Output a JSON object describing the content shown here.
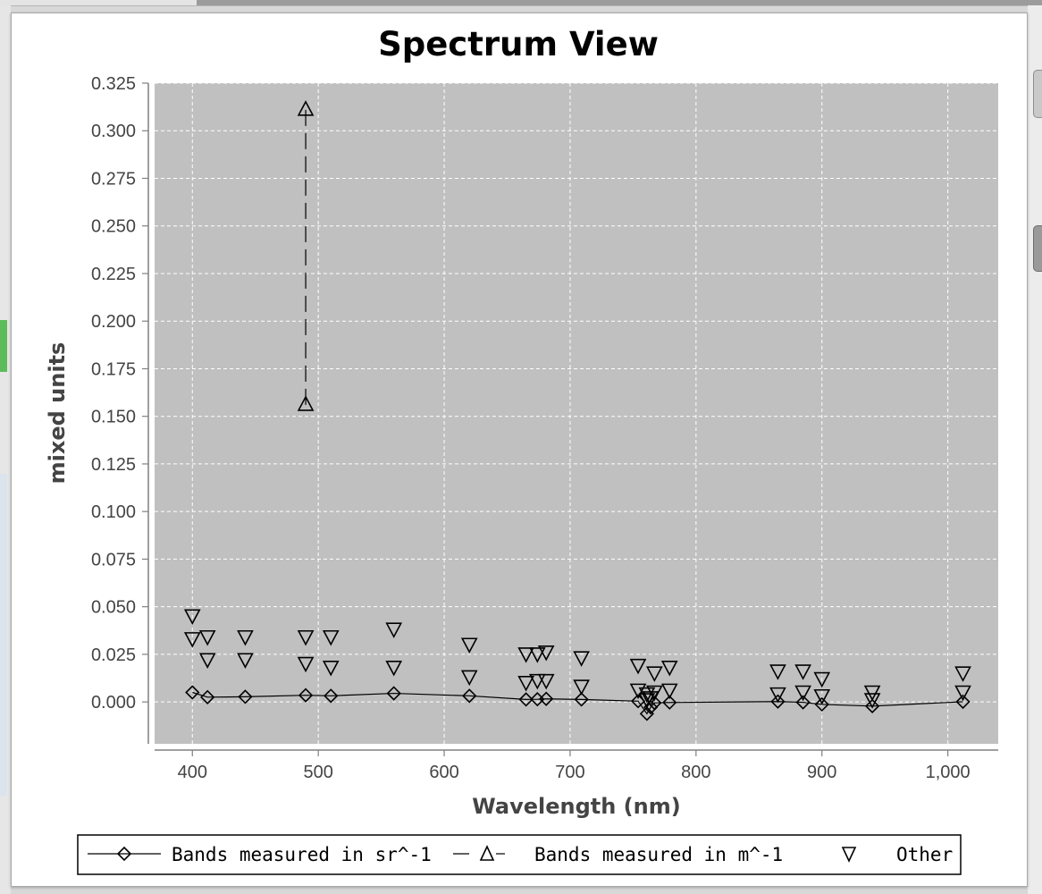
{
  "colors": {
    "plot_background": "#c0c0c0",
    "gridline": "#ffffff",
    "series_stroke": "#000000",
    "axis": "#808080"
  },
  "chart_data": {
    "type": "scatter",
    "title": "Spectrum View",
    "xlabel": "Wavelength (nm)",
    "ylabel": "mixed units",
    "xlim": [
      370,
      1040
    ],
    "ylim": [
      -0.022,
      0.325
    ],
    "xticks": [
      400,
      500,
      600,
      700,
      800,
      900,
      1000
    ],
    "xtick_labels": [
      "400",
      "500",
      "600",
      "700",
      "800",
      "900",
      "1,000"
    ],
    "yticks": [
      0.0,
      0.025,
      0.05,
      0.075,
      0.1,
      0.125,
      0.15,
      0.175,
      0.2,
      0.225,
      0.25,
      0.275,
      0.3,
      0.325
    ],
    "ytick_labels": [
      "0.000",
      "0.025",
      "0.050",
      "0.075",
      "0.100",
      "0.125",
      "0.150",
      "0.175",
      "0.200",
      "0.225",
      "0.250",
      "0.275",
      "0.300",
      "0.325"
    ],
    "grid": true,
    "legend_position": "bottom",
    "series": [
      {
        "name": "Bands measured in sr^-1",
        "marker": "diamond",
        "line": "solid",
        "x": [
          400,
          412,
          442,
          490,
          510,
          560,
          620,
          665,
          674,
          681,
          709,
          754,
          761,
          764,
          767,
          779,
          865,
          885,
          900,
          940,
          1012
        ],
        "y": [
          0.005,
          0.0025,
          0.0027,
          0.0035,
          0.0032,
          0.0045,
          0.0032,
          0.0013,
          0.0014,
          0.0016,
          0.0013,
          0.0004,
          -0.0062,
          -0.0028,
          -0.0005,
          -0.0003,
          0.0002,
          -0.0002,
          -0.0013,
          -0.0022,
          0.0001
        ]
      },
      {
        "name": "Bands measured in m^-1",
        "marker": "triangle-up",
        "line": "dashed",
        "x": [
          490,
          490
        ],
        "y": [
          0.156,
          0.311
        ]
      },
      {
        "name": "Other",
        "marker": "triangle-down",
        "line": "none",
        "x": [
          400,
          400,
          412,
          412,
          442,
          442,
          490,
          490,
          510,
          510,
          560,
          560,
          620,
          620,
          665,
          665,
          674,
          674,
          681,
          681,
          709,
          709,
          754,
          754,
          761,
          761,
          764,
          767,
          767,
          779,
          779,
          865,
          865,
          885,
          885,
          900,
          900,
          940,
          940,
          1012,
          1012
        ],
        "y": [
          0.045,
          0.033,
          0.034,
          0.022,
          0.034,
          0.022,
          0.034,
          0.02,
          0.034,
          0.018,
          0.038,
          0.018,
          0.03,
          0.013,
          0.025,
          0.01,
          0.025,
          0.011,
          0.026,
          0.011,
          0.023,
          0.008,
          0.019,
          0.006,
          0.004,
          0.001,
          0.002,
          0.015,
          0.005,
          0.018,
          0.006,
          0.016,
          0.004,
          0.016,
          0.005,
          0.012,
          0.003,
          0.005,
          0.001,
          0.015,
          0.005
        ]
      }
    ]
  }
}
